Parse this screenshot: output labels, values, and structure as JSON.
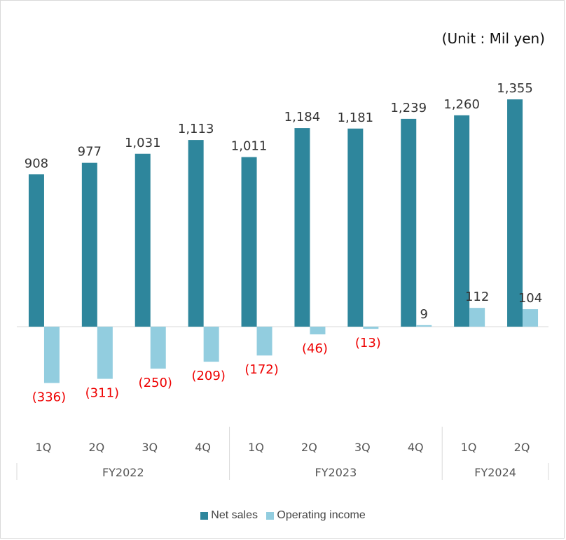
{
  "unit_label": "(Unit : Mil yen)",
  "colors": {
    "net_sales": "#2e869c",
    "operating_income": "#92cddf",
    "negative_label": "#ee0000"
  },
  "chart_data": {
    "type": "bar",
    "categories": [
      "1Q",
      "2Q",
      "3Q",
      "4Q",
      "1Q",
      "2Q",
      "3Q",
      "4Q",
      "1Q",
      "2Q"
    ],
    "groups": [
      {
        "label": "FY2022",
        "count": 4
      },
      {
        "label": "FY2023",
        "count": 4
      },
      {
        "label": "FY2024",
        "count": 2
      }
    ],
    "series": [
      {
        "name": "Net sales",
        "values": [
          908,
          977,
          1031,
          1113,
          1011,
          1184,
          1181,
          1239,
          1260,
          1355
        ],
        "labels": [
          "908",
          "977",
          "1,031",
          "1,113",
          "1,011",
          "1,184",
          "1,181",
          "1,239",
          "1,260",
          "1,355"
        ]
      },
      {
        "name": "Operating income",
        "values": [
          -336,
          -311,
          -250,
          -209,
          -172,
          -46,
          -13,
          9,
          112,
          104
        ],
        "labels": [
          "(336)",
          "(311)",
          "(250)",
          "(209)",
          "(172)",
          "(46)",
          "(13)",
          "9",
          "112",
          "104"
        ]
      }
    ],
    "legend": "bottom"
  }
}
